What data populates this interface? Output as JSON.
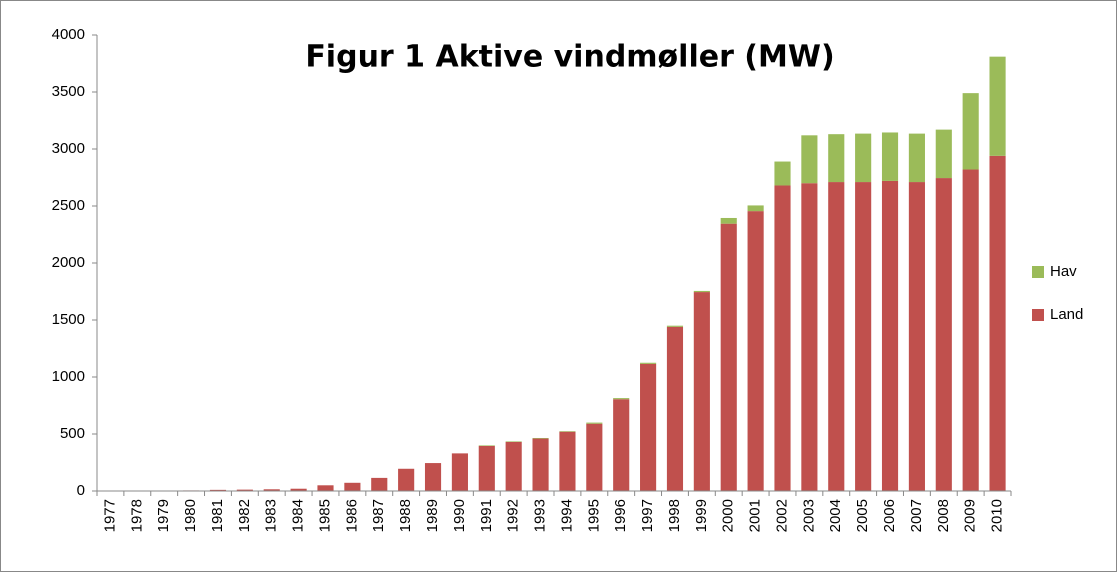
{
  "chart_data": {
    "type": "stacked_bar",
    "title": "Figur 1 Aktive vindmøller (MW)",
    "categories": [
      "1977",
      "1978",
      "1979",
      "1980",
      "1981",
      "1982",
      "1983",
      "1984",
      "1985",
      "1986",
      "1987",
      "1988",
      "1989",
      "1990",
      "1991",
      "1992",
      "1993",
      "1994",
      "1995",
      "1996",
      "1997",
      "1998",
      "1999",
      "2000",
      "2001",
      "2002",
      "2003",
      "2004",
      "2005",
      "2006",
      "2007",
      "2008",
      "2009",
      "2010"
    ],
    "series": [
      {
        "name": "Land",
        "color": "#c0504d",
        "values": [
          2,
          3,
          3,
          5,
          10,
          12,
          15,
          20,
          50,
          72,
          115,
          195,
          245,
          330,
          395,
          430,
          460,
          520,
          590,
          805,
          1115,
          1440,
          1745,
          2345,
          2455,
          2680,
          2700,
          2710,
          2710,
          2720,
          2710,
          2745,
          2820,
          2940
        ]
      },
      {
        "name": "Hav",
        "color": "#9bbb59",
        "values": [
          0,
          0,
          0,
          0,
          0,
          0,
          0,
          0,
          0,
          0,
          0,
          0,
          0,
          0,
          5,
          5,
          5,
          5,
          10,
          10,
          10,
          10,
          10,
          50,
          50,
          210,
          420,
          420,
          425,
          425,
          425,
          425,
          670,
          870
        ]
      }
    ],
    "ylim": [
      0,
      4000
    ],
    "yticks": [
      0,
      500,
      1000,
      1500,
      2000,
      2500,
      3000,
      3500,
      4000
    ],
    "grid": false,
    "legend": "right"
  }
}
